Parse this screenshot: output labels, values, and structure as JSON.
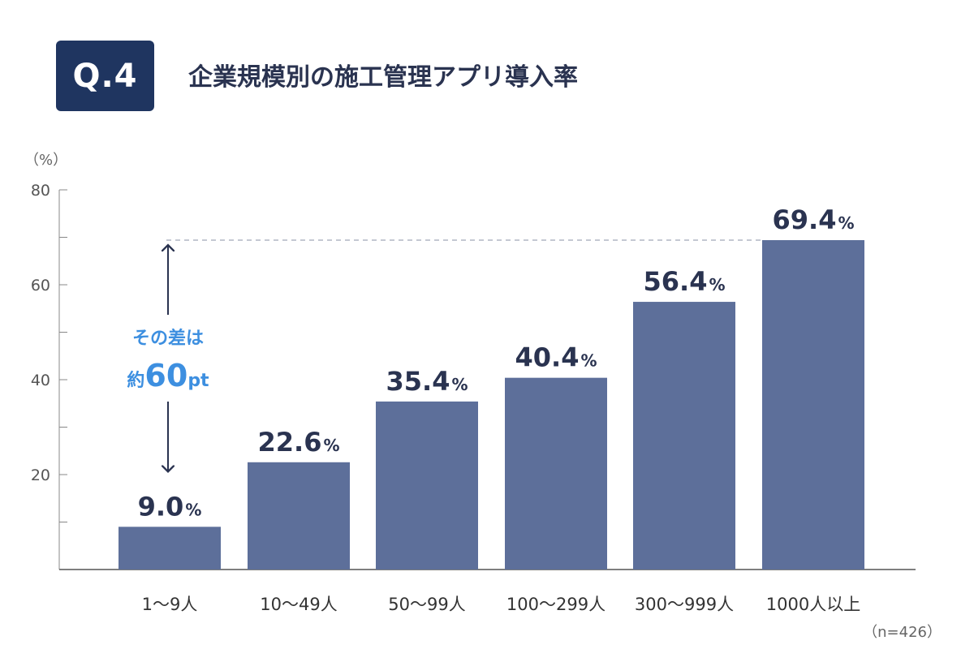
{
  "header": {
    "badge": "Q.4",
    "title": "企業規模別の施工管理アプリ導入率"
  },
  "axis_unit": "（%）",
  "footnote": "（n=426）",
  "annotation": {
    "line1": "その差は",
    "prefix": "約",
    "number": "60",
    "suffix": "pt"
  },
  "colors": {
    "bar": "#5d6f9a",
    "label": "#2a3350",
    "annotation": "#3d8fe0",
    "axis": "#888888",
    "dashed": "#a0a8b8"
  },
  "chart_data": {
    "type": "bar",
    "categories": [
      "1〜9人",
      "10〜49人",
      "50〜99人",
      "100〜299人",
      "300〜999人",
      "1000人以上"
    ],
    "values": [
      9.0,
      22.6,
      35.4,
      40.4,
      56.4,
      69.4
    ],
    "value_labels": [
      "9.0",
      "22.6",
      "35.4",
      "40.4",
      "56.4",
      "69.4"
    ],
    "value_suffix": "%",
    "ylim": [
      0,
      80
    ],
    "yticks": [
      20,
      40,
      60,
      80
    ],
    "minor_ticks": [
      10,
      30,
      50,
      70
    ],
    "ylabel": "（%）",
    "xlabel": "",
    "grid": false
  }
}
